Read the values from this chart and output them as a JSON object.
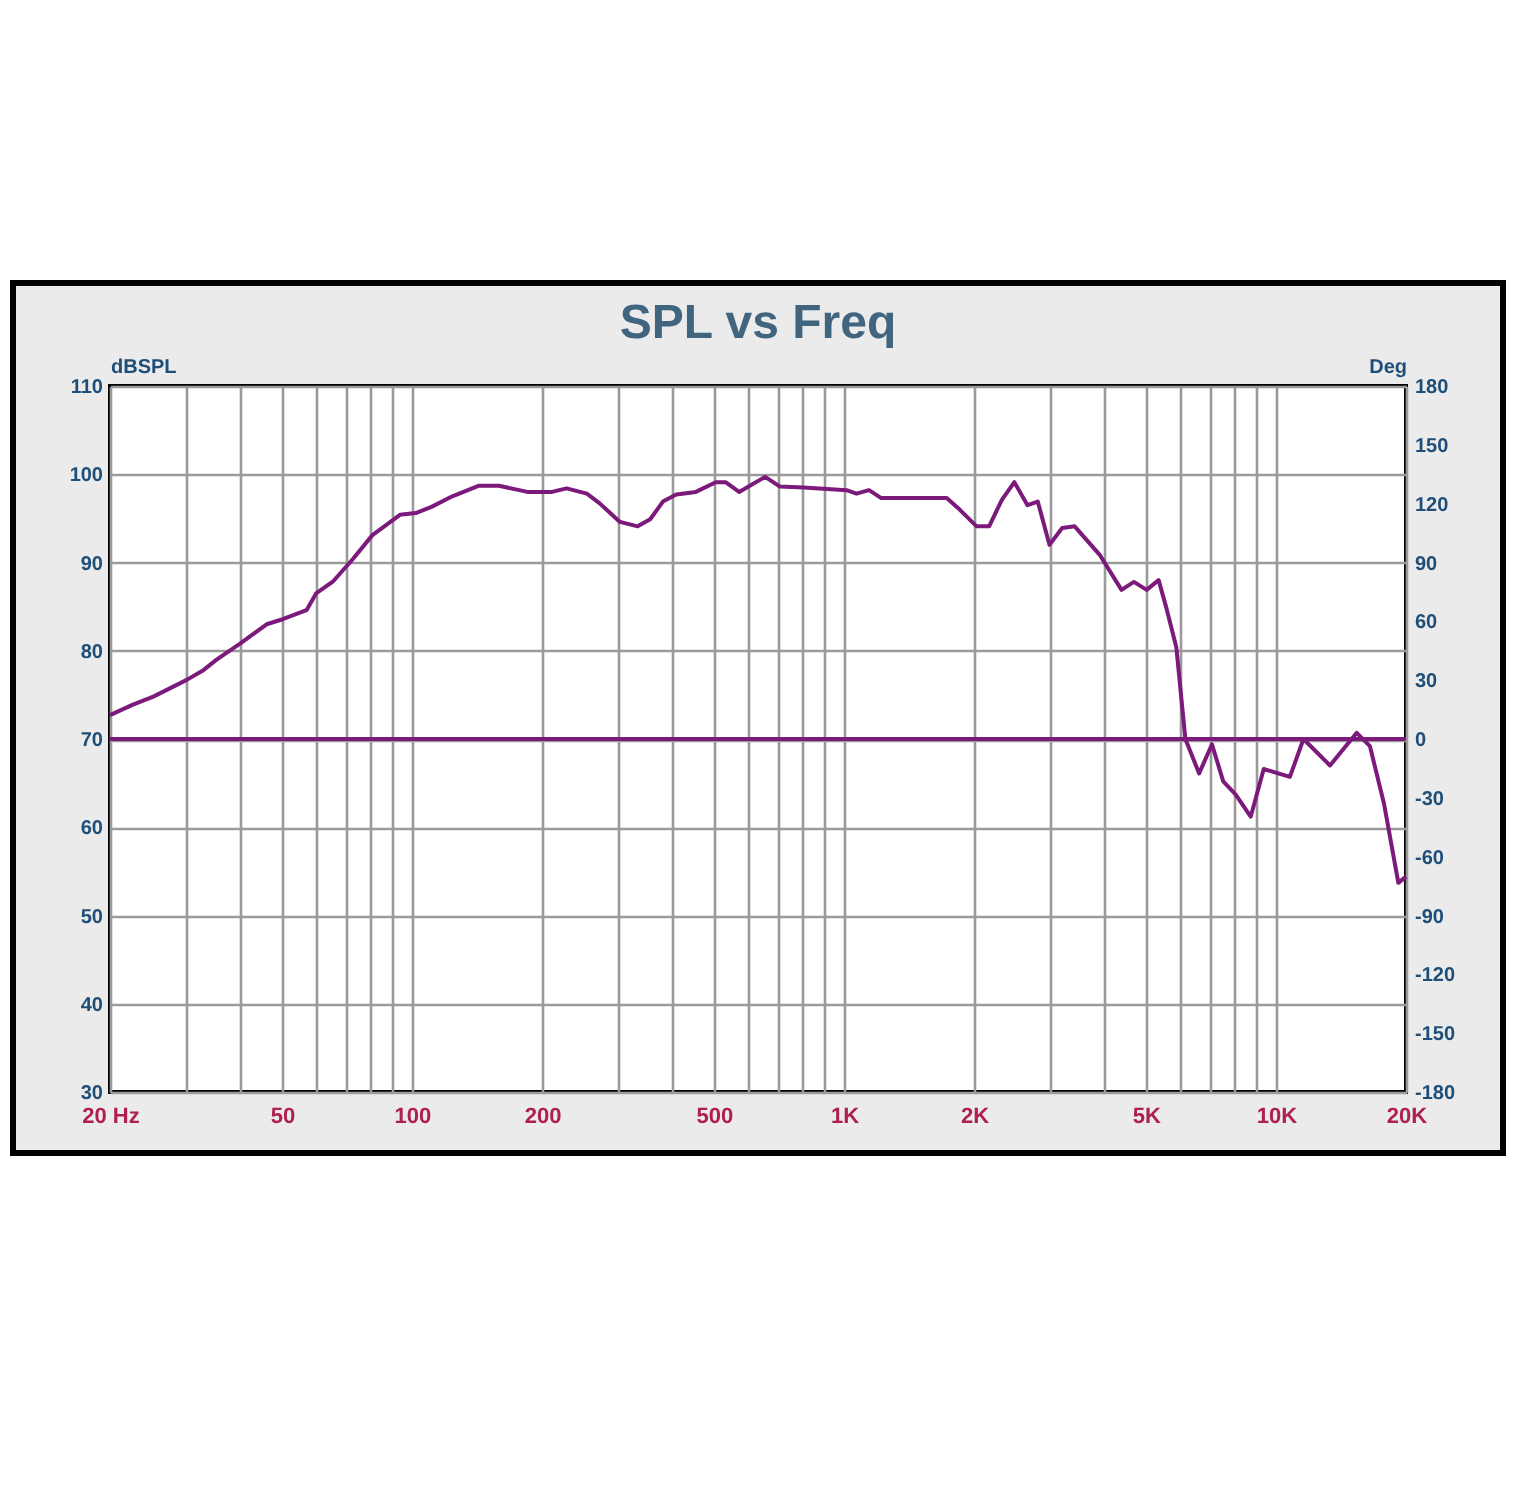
{
  "chart_data": {
    "type": "line",
    "title": "SPL vs Freq",
    "ylabel": "dBSPL",
    "y2label": "Deg",
    "log": "x",
    "xlim": [
      20,
      20000
    ],
    "xticks": [
      {
        "value": 20,
        "label": "20  Hz"
      },
      {
        "value": 30,
        "label": null
      },
      {
        "value": 40,
        "label": null
      },
      50,
      {
        "value": 60,
        "label": null
      },
      {
        "value": 70,
        "label": null
      },
      {
        "value": 80,
        "label": null
      },
      {
        "value": 90,
        "label": null
      },
      100,
      200,
      {
        "value": 300,
        "label": null
      },
      {
        "value": 400,
        "label": null
      },
      500,
      {
        "value": 600,
        "label": null
      },
      {
        "value": 700,
        "label": null
      },
      {
        "value": 800,
        "label": null
      },
      {
        "value": 900,
        "label": null
      },
      {
        "value": 1000,
        "label": "1K"
      },
      {
        "value": 2000,
        "label": "2K"
      },
      {
        "value": 3000,
        "label": null
      },
      {
        "value": 4000,
        "label": null
      },
      {
        "value": 5000,
        "label": "5K"
      },
      {
        "value": 6000,
        "label": null
      },
      {
        "value": 7000,
        "label": null
      },
      {
        "value": 8000,
        "label": null
      },
      {
        "value": 9000,
        "label": null
      },
      {
        "value": 10000,
        "label": "10K"
      },
      {
        "value": 20000,
        "label": "20K"
      }
    ],
    "ylim": [
      30,
      110
    ],
    "yticks": [
      30,
      40,
      50,
      60,
      70,
      80,
      90,
      100,
      110
    ],
    "y2lim": [
      -180,
      180
    ],
    "y2ticks": [
      -180,
      -150,
      -120,
      -90,
      -60,
      -30,
      0,
      30,
      60,
      90,
      120,
      150,
      180
    ],
    "grid": true,
    "marker": "none",
    "line_style": "solid",
    "series": [
      {
        "color": "#7b1a7b",
        "x": [
          20,
          22.6,
          25.2,
          30.1,
          32.9,
          35.3,
          40,
          46.1,
          50.4,
          57,
          60,
          65.8,
          73,
          81,
          93.8,
          102,
          111,
          124,
          143,
          159,
          185,
          211,
          228,
          254,
          272,
          303,
          333,
          356,
          381,
          409,
          454,
          505,
          532,
          572,
          657,
          711,
          806,
          1014,
          1069,
          1143,
          1220,
          1729,
          1853,
          2028,
          2168,
          2320,
          2480,
          2660,
          2810,
          2990,
          3200,
          3420,
          3918,
          4390,
          4690,
          5020,
          5350,
          5580,
          5880,
          6170,
          6640,
          7110,
          7550,
          8070,
          8740,
          9370,
          10770,
          11580,
          13340,
          15380,
          16500,
          17800,
          19200,
          20000
        ],
        "values": [
          72.7,
          73.9,
          74.8,
          76.7,
          77.8,
          79.0,
          80.8,
          83.0,
          83.6,
          84.6,
          86.5,
          87.9,
          90.4,
          93.1,
          95.4,
          95.6,
          96.3,
          97.5,
          98.7,
          98.7,
          98.0,
          98.0,
          98.4,
          97.8,
          96.7,
          94.6,
          94.1,
          94.9,
          96.9,
          97.7,
          98.0,
          99.1,
          99.1,
          98.0,
          99.7,
          98.6,
          98.5,
          98.2,
          97.8,
          98.2,
          97.3,
          97.3,
          96.0,
          94.1,
          94.1,
          97.1,
          99.1,
          96.5,
          96.9,
          92.0,
          93.9,
          94.1,
          90.8,
          86.9,
          87.8,
          86.9,
          88.0,
          84.8,
          80.4,
          70.0,
          66.1,
          69.4,
          65.2,
          63.7,
          61.2,
          66.6,
          65.7,
          70.0,
          67.0,
          70.7,
          69.2,
          62.6,
          53.7,
          54.4
        ]
      },
      {
        "color": "#7b1a7b",
        "axis": "y2",
        "x": [
          20,
          20000
        ],
        "values": [
          0,
          0
        ]
      }
    ]
  }
}
